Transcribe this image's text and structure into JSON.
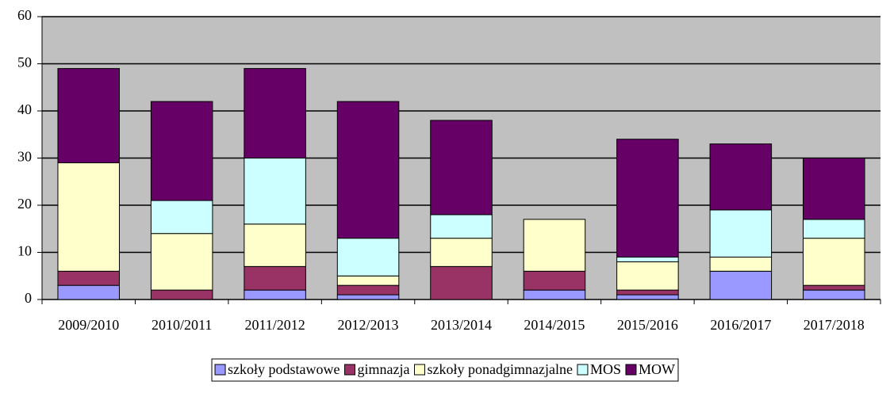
{
  "chart_data": {
    "type": "stacked_bar",
    "categories": [
      "2009/2010",
      "2010/2011",
      "2011/2012",
      "2012/2013",
      "2013/2014",
      "2014/2015",
      "2015/2016",
      "2016/2017",
      "2017/2018"
    ],
    "series": [
      {
        "name": "szkoły podstawowe",
        "color": "#9999ff",
        "values": [
          3,
          0,
          2,
          1,
          0,
          2,
          1,
          6,
          2
        ]
      },
      {
        "name": "gimnazja",
        "color": "#993366",
        "values": [
          3,
          2,
          5,
          2,
          7,
          4,
          1,
          0,
          1
        ]
      },
      {
        "name": "szkoły ponadgimnazjalne",
        "color": "#ffffcc",
        "values": [
          23,
          12,
          9,
          2,
          6,
          11,
          6,
          3,
          10
        ]
      },
      {
        "name": "MOS",
        "color": "#ccffff",
        "values": [
          0,
          7,
          14,
          8,
          5,
          0,
          1,
          10,
          4
        ]
      },
      {
        "name": "MOW",
        "color": "#660066",
        "values": [
          20,
          21,
          19,
          29,
          20,
          0,
          25,
          14,
          13
        ]
      }
    ],
    "ylim": [
      0,
      60
    ],
    "yticks": [
      0,
      10,
      20,
      30,
      40,
      50,
      60
    ],
    "grid": true,
    "legend": "bottom"
  }
}
